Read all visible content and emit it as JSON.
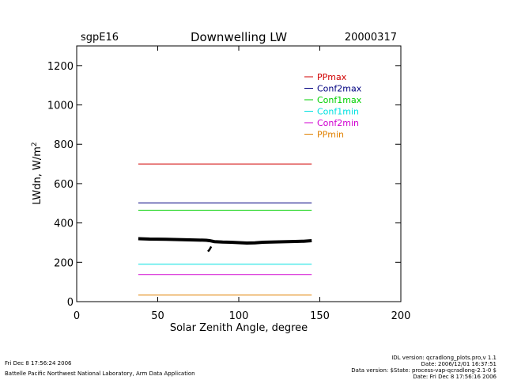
{
  "header": {
    "site": "sgpE16",
    "date": "20000317"
  },
  "chart_data": {
    "type": "line",
    "title": "Downwelling LW",
    "xlabel": "Solar Zenith Angle, degree",
    "ylabel": "LWdn, W/m",
    "ylabel_superscript": "2",
    "xlim": [
      0,
      200
    ],
    "ylim": [
      0,
      1300
    ],
    "x_ticks": [
      0,
      50,
      100,
      150,
      200
    ],
    "y_ticks": [
      0,
      200,
      400,
      600,
      800,
      1000,
      1200
    ],
    "grid": false,
    "legend_position": "top-right",
    "series": [
      {
        "name": "PPmax",
        "color": "#d00000",
        "x": [
          38,
          145
        ],
        "y": [
          700,
          700
        ]
      },
      {
        "name": "Conf2max",
        "color": "#000080",
        "x": [
          38,
          145
        ],
        "y": [
          502,
          502
        ]
      },
      {
        "name": "Conf1max",
        "color": "#00d000",
        "x": [
          38,
          145
        ],
        "y": [
          465,
          465
        ]
      },
      {
        "name": "Conf1min",
        "color": "#00e0e0",
        "x": [
          38,
          145
        ],
        "y": [
          190,
          190
        ]
      },
      {
        "name": "Conf2min",
        "color": "#d000d0",
        "x": [
          38,
          145
        ],
        "y": [
          138,
          138
        ]
      },
      {
        "name": "PPmin",
        "color": "#e08000",
        "x": [
          38,
          145
        ],
        "y": [
          33,
          33
        ]
      }
    ],
    "observed": {
      "color": "#000000",
      "x": [
        38,
        45,
        55,
        65,
        70,
        75,
        80,
        82,
        85,
        90,
        95,
        100,
        105,
        110,
        115,
        120,
        125,
        130,
        135,
        140,
        145
      ],
      "y": [
        320,
        318,
        317,
        315,
        314,
        313,
        312,
        310,
        305,
        303,
        302,
        300,
        298,
        299,
        302,
        303,
        304,
        305,
        306,
        307,
        310
      ],
      "dip_x": [
        81,
        82,
        83
      ],
      "dip_y": [
        255,
        265,
        280
      ]
    }
  },
  "footer": {
    "timestamp": "Fri Dec  8 17:56:24 2006",
    "org": "Battelle Pacific Northwest National Laboratory, Arm Data Application",
    "idl": "IDL version: qcradlong_plots.pro,v 1.1",
    "date": "Date: 2006/12/01 16:37:51",
    "data_version": "Data version: $State: process-vap-qcradlong-2.1-0 $",
    "date2": "Date: Fri Dec  8 17:56:16 2006"
  }
}
